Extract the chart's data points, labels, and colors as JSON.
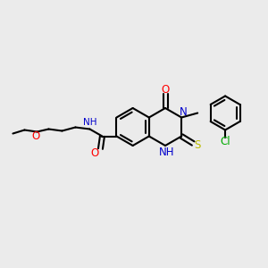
{
  "bg_color": "#ebebeb",
  "bond_color": "#000000",
  "bond_width": 1.5,
  "atom_colors": {
    "N": "#0000cc",
    "O": "#ff0000",
    "S": "#bbbb00",
    "Cl": "#00aa00",
    "C": "#000000",
    "H": "#6699aa"
  },
  "font_size": 7.5,
  "label_font_size": 7.0
}
